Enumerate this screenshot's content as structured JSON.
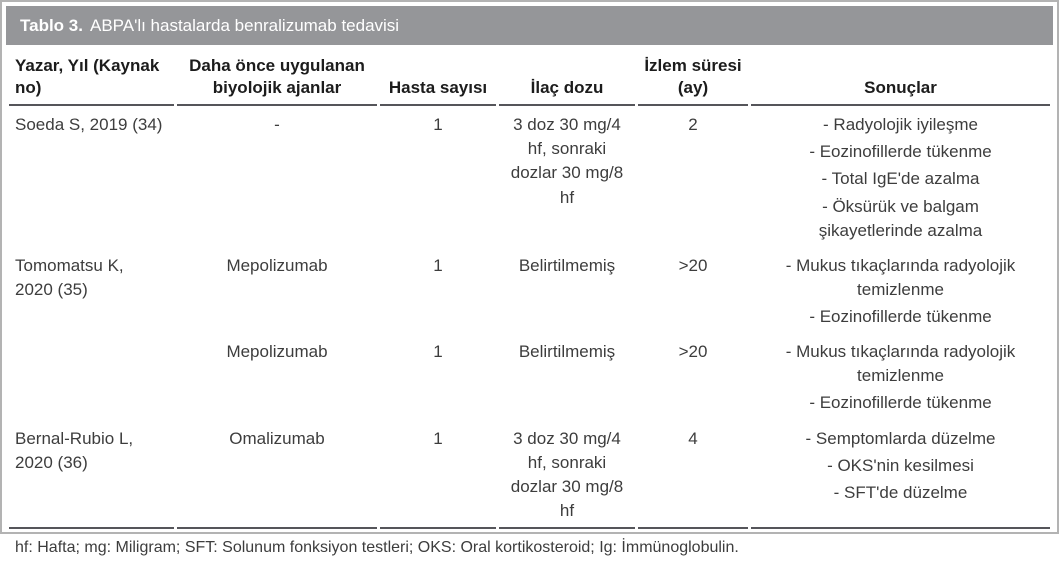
{
  "title": {
    "label": "Tablo 3.",
    "text": "ABPA'lı hastalarda benralizumab tedavisi"
  },
  "colors": {
    "header_band": "#959699",
    "title_text": "#ffffff",
    "outer_border": "#b3b3b3",
    "rule": "#55555a",
    "body_text": "#3d3d3d"
  },
  "table": {
    "columns": [
      "Yazar, Yıl (Kaynak\nno)",
      "Daha önce uygulanan\nbiyolojik ajanlar",
      "Hasta sayısı",
      "İlaç dozu",
      "İzlem süresi\n(ay)",
      "Sonuçlar"
    ],
    "rows": [
      {
        "author": "Soeda S, 2019 (34)",
        "prior_biologics": "-",
        "patient_count": "1",
        "dose": "3 doz 30 mg/4\nhf, sonraki\ndozlar 30 mg/8\nhf",
        "follow_up_months": "2",
        "results": [
          "- Radyolojik iyileşme",
          "- Eozinofillerde tükenme",
          "- Total IgE'de azalma",
          "- Öksürük ve balgam\nşikayetlerinde azalma"
        ]
      },
      {
        "author": "Tomomatsu K,\n2020 (35)",
        "prior_biologics": "Mepolizumab",
        "patient_count": "1",
        "dose": "Belirtilmemiş",
        "follow_up_months": ">20",
        "results": [
          "- Mukus tıkaçlarında radyolojik\ntemizlenme",
          "- Eozinofillerde tükenme"
        ]
      },
      {
        "author": "",
        "prior_biologics": "Mepolizumab",
        "patient_count": "1",
        "dose": "Belirtilmemiş",
        "follow_up_months": ">20",
        "results": [
          "- Mukus tıkaçlarında radyolojik\ntemizlenme",
          "- Eozinofillerde tükenme"
        ]
      },
      {
        "author": "Bernal-Rubio L,\n2020 (36)",
        "prior_biologics": "Omalizumab",
        "patient_count": "1",
        "dose": "3 doz 30 mg/4\nhf, sonraki\ndozlar 30 mg/8\nhf",
        "follow_up_months": "4",
        "results": [
          "- Semptomlarda düzelme",
          "- OKS'nin kesilmesi",
          "- SFT'de düzelme"
        ]
      }
    ],
    "footnote": "hf: Hafta; mg: Miligram; SFT: Solunum fonksiyon testleri; OKS: Oral kortikosteroid; Ig: İmmünoglobulin."
  }
}
